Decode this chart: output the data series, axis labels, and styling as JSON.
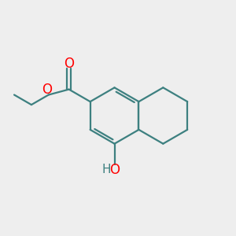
{
  "bg_color": "#eeeeee",
  "bond_color": "#3d8080",
  "bond_width": 1.6,
  "atom_colors": {
    "O": "#ff0000",
    "H": "#3d8080"
  },
  "font_size_O": 12,
  "font_size_H": 11,
  "fig_size": [
    3.0,
    3.0
  ],
  "dpi": 100
}
